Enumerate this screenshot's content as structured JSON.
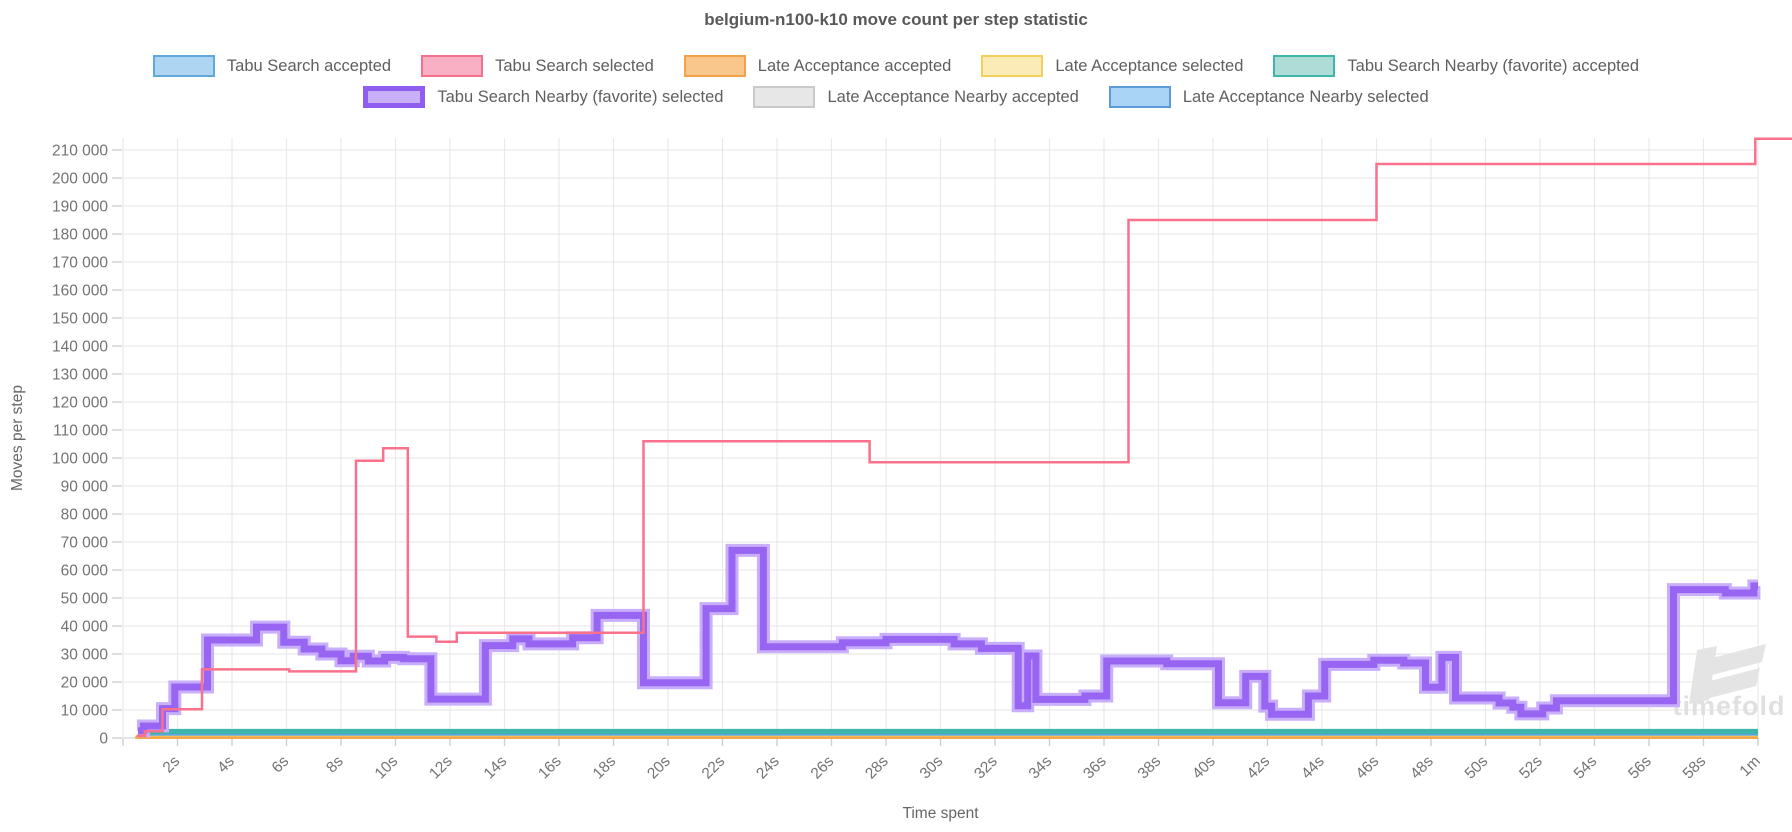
{
  "title": "belgium-n100-k10 move count per step statistic",
  "legend": {
    "rows": [
      [
        {
          "label": "Tabu Search accepted",
          "fill": "#aed6f2",
          "border": "#5fa8dc",
          "thick": false
        },
        {
          "label": "Tabu Search selected",
          "fill": "#f9afc4",
          "border": "#f4708c",
          "thick": false
        },
        {
          "label": "Late Acceptance accepted",
          "fill": "#f9c78b",
          "border": "#f2a24a",
          "thick": false
        },
        {
          "label": "Late Acceptance selected",
          "fill": "#fbecb7",
          "border": "#f3cf5d",
          "thick": false
        },
        {
          "label": "Tabu Search Nearby (favorite) accepted",
          "fill": "#aedcd6",
          "border": "#41b5a9",
          "thick": false
        }
      ],
      [
        {
          "label": "Tabu Search Nearby (favorite) selected",
          "fill": "#c9aef8",
          "border": "#8f5df0",
          "thick": true
        },
        {
          "label": "Late Acceptance Nearby accepted",
          "fill": "#e7e7e7",
          "border": "#c9c9c9",
          "thick": false
        },
        {
          "label": "Late Acceptance Nearby selected",
          "fill": "#a9d4f5",
          "border": "#5b9bd8",
          "thick": false
        }
      ]
    ]
  },
  "watermark": "timefold",
  "chart_data": {
    "type": "line",
    "title": "belgium-n100-k10 move count per step statistic",
    "xlabel": "Time spent",
    "ylabel": "Moves per step",
    "xlim_seconds": [
      0,
      61.5
    ],
    "ylim": [
      0,
      214500
    ],
    "grid": true,
    "legend_position": "top",
    "x_ticks": [
      {
        "value": 0,
        "label": ""
      },
      {
        "value": 2,
        "label": "2s"
      },
      {
        "value": 4,
        "label": "4s"
      },
      {
        "value": 6,
        "label": "6s"
      },
      {
        "value": 8,
        "label": "8s"
      },
      {
        "value": 10,
        "label": "10s"
      },
      {
        "value": 12,
        "label": "12s"
      },
      {
        "value": 14,
        "label": "14s"
      },
      {
        "value": 16,
        "label": "16s"
      },
      {
        "value": 18,
        "label": "18s"
      },
      {
        "value": 20,
        "label": "20s"
      },
      {
        "value": 22,
        "label": "22s"
      },
      {
        "value": 24,
        "label": "24s"
      },
      {
        "value": 26,
        "label": "26s"
      },
      {
        "value": 28,
        "label": "28s"
      },
      {
        "value": 30,
        "label": "30s"
      },
      {
        "value": 32,
        "label": "32s"
      },
      {
        "value": 34,
        "label": "34s"
      },
      {
        "value": 36,
        "label": "36s"
      },
      {
        "value": 38,
        "label": "38s"
      },
      {
        "value": 40,
        "label": "40s"
      },
      {
        "value": 42,
        "label": "42s"
      },
      {
        "value": 44,
        "label": "44s"
      },
      {
        "value": 46,
        "label": "46s"
      },
      {
        "value": 48,
        "label": "48s"
      },
      {
        "value": 50,
        "label": "50s"
      },
      {
        "value": 52,
        "label": "52s"
      },
      {
        "value": 54,
        "label": "54s"
      },
      {
        "value": 56,
        "label": "56s"
      },
      {
        "value": 58,
        "label": "58s"
      },
      {
        "value": 60,
        "label": "1m"
      }
    ],
    "y_ticks": [
      {
        "value": 0,
        "label": "0"
      },
      {
        "value": 10000,
        "label": "10 000"
      },
      {
        "value": 20000,
        "label": "20 000"
      },
      {
        "value": 30000,
        "label": "30 000"
      },
      {
        "value": 40000,
        "label": "40 000"
      },
      {
        "value": 50000,
        "label": "50 000"
      },
      {
        "value": 60000,
        "label": "60 000"
      },
      {
        "value": 70000,
        "label": "70 000"
      },
      {
        "value": 80000,
        "label": "80 000"
      },
      {
        "value": 90000,
        "label": "90 000"
      },
      {
        "value": 100000,
        "label": "100 000"
      },
      {
        "value": 110000,
        "label": "110 000"
      },
      {
        "value": 120000,
        "label": "120 000"
      },
      {
        "value": 130000,
        "label": "130 000"
      },
      {
        "value": 140000,
        "label": "140 000"
      },
      {
        "value": 150000,
        "label": "150 000"
      },
      {
        "value": 160000,
        "label": "160 000"
      },
      {
        "value": 170000,
        "label": "170 000"
      },
      {
        "value": 180000,
        "label": "180 000"
      },
      {
        "value": 190000,
        "label": "190 000"
      },
      {
        "value": 200000,
        "label": "200 000"
      },
      {
        "value": 210000,
        "label": "210 000"
      }
    ],
    "series": [
      {
        "id": "late-acceptance-nearby-accepted",
        "name": "Late Acceptance Nearby accepted",
        "color": "#d9d9d9",
        "width": 3,
        "end": 60,
        "points": [
          [
            0.55,
            2350
          ],
          [
            60,
            2350
          ]
        ]
      },
      {
        "id": "tabu-search-accepted",
        "name": "Tabu Search accepted",
        "color": "#5fb0e8",
        "width": 4,
        "end": 60,
        "points": [
          [
            0.5,
            500
          ],
          [
            0.75,
            2050
          ],
          [
            60,
            2050
          ]
        ]
      },
      {
        "id": "late-acceptance-nearby-selected",
        "name": "Late Acceptance Nearby selected",
        "color": "#5aa7e0",
        "width": 3,
        "end": 60,
        "points": [
          [
            0.55,
            1300
          ],
          [
            60,
            1300
          ]
        ]
      },
      {
        "id": "late-acceptance-selected",
        "name": "Late Acceptance selected",
        "color": "#f3cf5d",
        "width": 2.5,
        "end": 60,
        "points": [
          [
            0.45,
            350
          ],
          [
            60,
            350
          ]
        ]
      },
      {
        "id": "late-acceptance-accepted",
        "name": "Late Acceptance accepted",
        "color": "#f5a54a",
        "width": 2.5,
        "end": 60,
        "points": [
          [
            0.45,
            100
          ],
          [
            60,
            100
          ]
        ]
      },
      {
        "id": "tabu-search-nearby-accepted",
        "name": "Tabu Search Nearby (favorite) accepted",
        "color": "#3eb4aa",
        "width": 5,
        "end": 60,
        "points": [
          [
            0.55,
            2350
          ],
          [
            60,
            2350
          ]
        ]
      },
      {
        "id": "tabu-search-nearby-selected",
        "name": "Tabu Search Nearby (favorite) selected",
        "color": "#9765f2",
        "width": 7,
        "outline": "#c9aefb",
        "outline_width": 13,
        "end": 60,
        "points": [
          [
            0.55,
            2600
          ],
          [
            0.75,
            4300
          ],
          [
            1.45,
            10500
          ],
          [
            1.9,
            18200
          ],
          [
            3.1,
            35000
          ],
          [
            4.9,
            39600
          ],
          [
            5.9,
            34200
          ],
          [
            6.65,
            31800
          ],
          [
            7.3,
            30000
          ],
          [
            8.0,
            27600
          ],
          [
            8.45,
            29200
          ],
          [
            9.0,
            27500
          ],
          [
            9.6,
            28800
          ],
          [
            10.3,
            28300
          ],
          [
            11.3,
            13900
          ],
          [
            13.3,
            33000
          ],
          [
            14.3,
            35400
          ],
          [
            14.9,
            33600
          ],
          [
            16.5,
            35800
          ],
          [
            17.4,
            43800
          ],
          [
            19.1,
            19700
          ],
          [
            21.4,
            46200
          ],
          [
            22.35,
            67000
          ],
          [
            23.5,
            32600
          ],
          [
            26.4,
            34000
          ],
          [
            28.0,
            35200
          ],
          [
            30.5,
            33600
          ],
          [
            31.5,
            32000
          ],
          [
            32.85,
            11500
          ],
          [
            33.2,
            29300
          ],
          [
            33.5,
            13800
          ],
          [
            35.3,
            15000
          ],
          [
            36.1,
            27500
          ],
          [
            38.3,
            26500
          ],
          [
            40.2,
            12600
          ],
          [
            41.2,
            22000
          ],
          [
            41.9,
            11400
          ],
          [
            42.15,
            8500
          ],
          [
            43.5,
            15000
          ],
          [
            44.1,
            26300
          ],
          [
            45.9,
            27800
          ],
          [
            47.0,
            26800
          ],
          [
            47.8,
            18100
          ],
          [
            48.4,
            28800
          ],
          [
            48.9,
            14300
          ],
          [
            50.5,
            12500
          ],
          [
            51.0,
            11000
          ],
          [
            51.3,
            8600
          ],
          [
            52.1,
            10700
          ],
          [
            52.6,
            13300
          ],
          [
            56.9,
            53000
          ],
          [
            58.8,
            51800
          ],
          [
            59.85,
            54300
          ]
        ]
      },
      {
        "id": "tabu-search-selected",
        "name": "Tabu Search selected",
        "color": "#f9718b",
        "width": 2.5,
        "end": 61.4,
        "points": [
          [
            0.5,
            800
          ],
          [
            0.8,
            2400
          ],
          [
            1.45,
            10300
          ],
          [
            2.9,
            24500
          ],
          [
            6.1,
            23800
          ],
          [
            8.55,
            99000
          ],
          [
            9.55,
            103500
          ],
          [
            10.45,
            36200
          ],
          [
            11.5,
            34400
          ],
          [
            12.25,
            37600
          ],
          [
            19.1,
            106000
          ],
          [
            27.4,
            98500
          ],
          [
            36.9,
            185000
          ],
          [
            46.0,
            205000
          ],
          [
            59.9,
            214000
          ]
        ]
      }
    ]
  }
}
